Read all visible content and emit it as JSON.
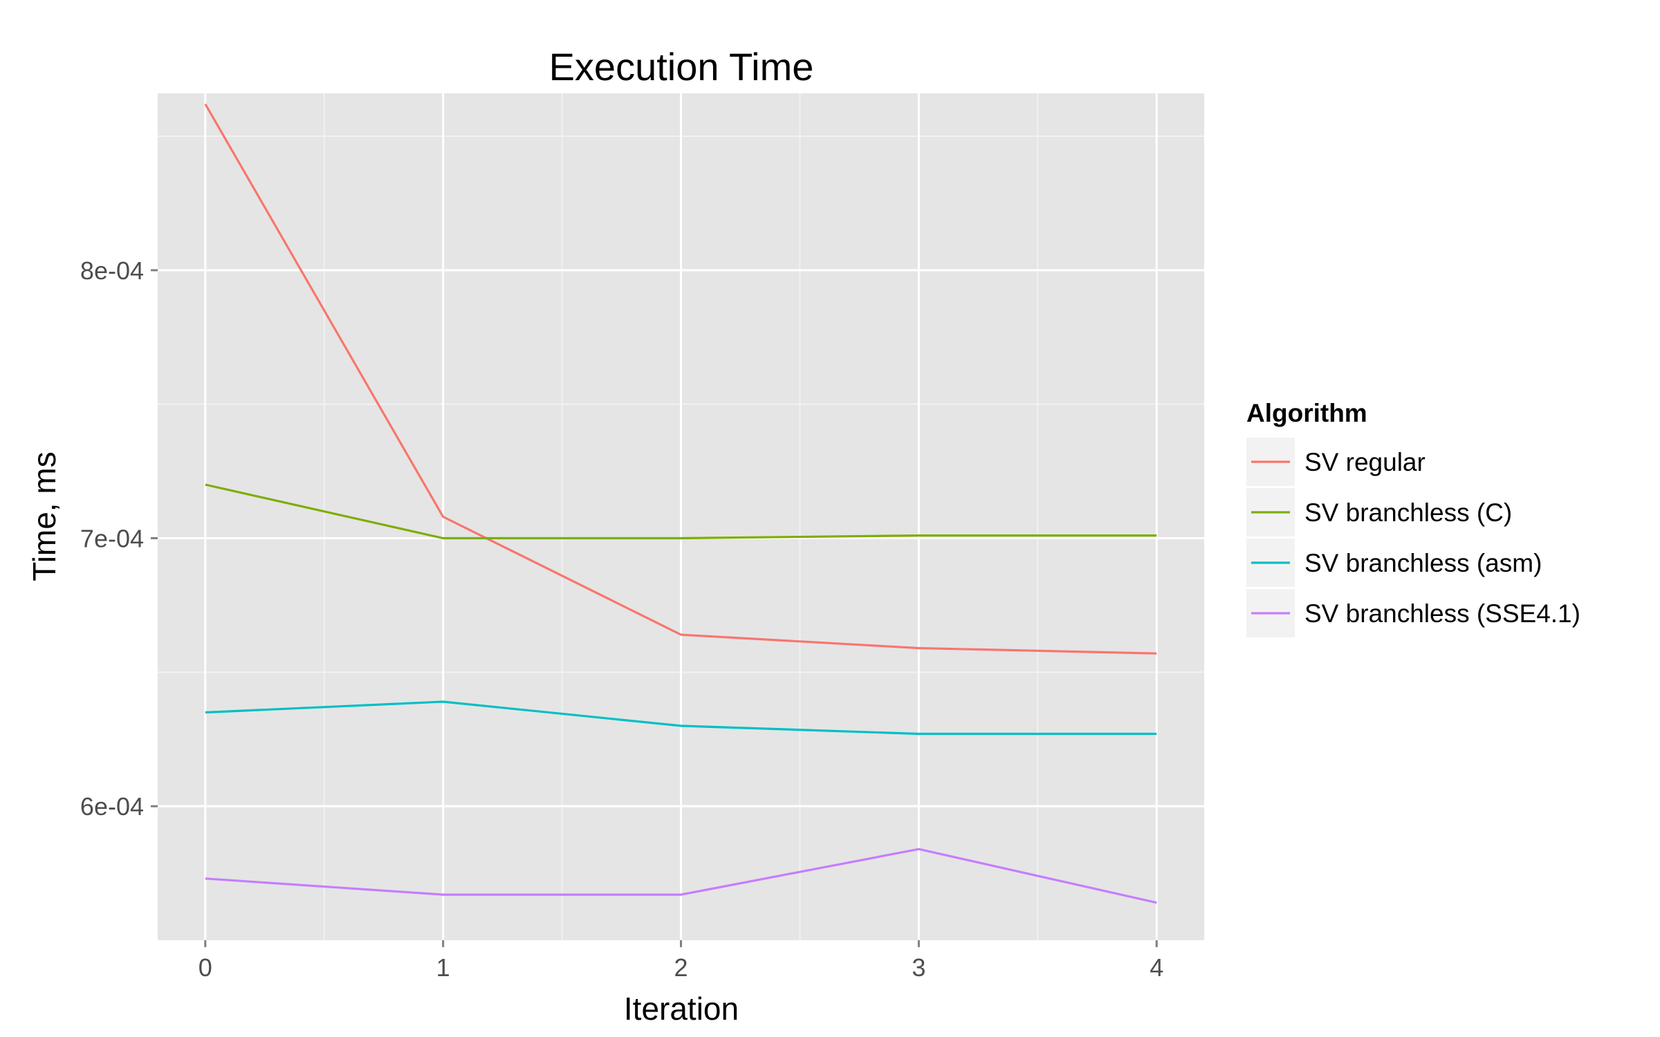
{
  "chart_data": {
    "type": "line",
    "title": "Execution Time",
    "xlabel": "Iteration",
    "ylabel": "Time, ms",
    "x": [
      0,
      1,
      2,
      3,
      4
    ],
    "xlim": [
      -0.2,
      4.2
    ],
    "ylim": [
      0.00055,
      0.000866
    ],
    "x_ticks": [
      0,
      1,
      2,
      3,
      4
    ],
    "x_tick_labels": [
      "0",
      "1",
      "2",
      "3",
      "4"
    ],
    "y_ticks": [
      0.0006,
      0.0007,
      0.0008
    ],
    "y_tick_labels": [
      "6e-04",
      "7e-04",
      "8e-04"
    ],
    "grid": true,
    "legend_title": "Algorithm",
    "legend_position": "right",
    "series": [
      {
        "name": "SV regular",
        "color": "#F8766D",
        "values": [
          0.000862,
          0.000708,
          0.000664,
          0.000659,
          0.000657
        ]
      },
      {
        "name": "SV branchless (C)",
        "color": "#7CAE00",
        "values": [
          0.00072,
          0.0007,
          0.0007,
          0.000701,
          0.000701
        ]
      },
      {
        "name": "SV branchless (asm)",
        "color": "#00BFC4",
        "values": [
          0.000635,
          0.000639,
          0.00063,
          0.000627,
          0.000627
        ]
      },
      {
        "name": "SV branchless (SSE4.1)",
        "color": "#C77CFF",
        "values": [
          0.000573,
          0.000567,
          0.000567,
          0.000584,
          0.000564
        ]
      }
    ]
  }
}
